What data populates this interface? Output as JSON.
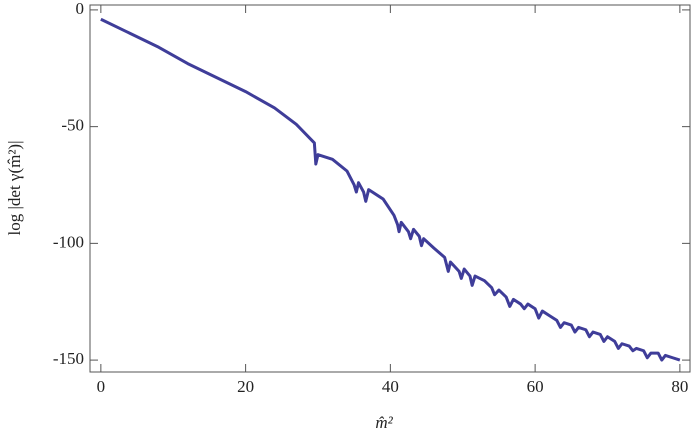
{
  "chart_data": {
    "type": "line",
    "xlabel": "m̂²",
    "ylabel": "log |det γ(m̂²)|",
    "x": [
      0,
      4,
      8,
      12,
      16,
      20,
      24,
      27,
      29.5,
      29.7,
      30,
      32,
      34,
      35,
      35.3,
      35.6,
      36.3,
      36.6,
      37,
      39,
      40.5,
      41,
      41.2,
      41.5,
      42.5,
      42.8,
      43.2,
      44,
      44.3,
      44.6,
      46,
      47.5,
      48,
      48.3,
      49.5,
      49.8,
      50.2,
      51,
      51.3,
      51.7,
      53,
      54,
      54.4,
      55,
      56,
      56.5,
      57,
      58,
      58.5,
      59,
      60,
      60.5,
      61,
      62,
      63,
      63.5,
      64,
      65,
      65.5,
      66,
      67,
      67.5,
      68,
      69,
      69.5,
      70,
      71,
      71.5,
      72,
      73,
      73.5,
      74,
      75,
      75.5,
      76,
      77,
      77.5,
      78,
      79,
      80
    ],
    "series": [
      {
        "color": "#3f3d99",
        "values": [
          -4,
          -10,
          -16,
          -23,
          -29,
          -35,
          -42,
          -49,
          -57,
          -66,
          -62,
          -64,
          -69,
          -75,
          -78,
          -74,
          -78,
          -82,
          -77,
          -81,
          -88,
          -92,
          -95,
          -91,
          -95,
          -98,
          -94,
          -97,
          -101,
          -98,
          -102,
          -106,
          -112,
          -108,
          -112,
          -115,
          -111,
          -114,
          -118,
          -114,
          -116,
          -119,
          -122,
          -120,
          -123,
          -127,
          -124,
          -126,
          -128,
          -126,
          -128,
          -132,
          -129,
          -131,
          -133,
          -136,
          -134,
          -135,
          -138,
          -136,
          -137,
          -140,
          -138,
          -139,
          -142,
          -140,
          -142,
          -145,
          -143,
          -144,
          -146,
          -145,
          -146,
          -149,
          -147,
          -147,
          -150,
          -148,
          -149,
          -150
        ]
      }
    ],
    "xlim": [
      -1.5,
      81.4
    ],
    "ylim": [
      -155.1,
      2.1
    ],
    "xticks": [
      0,
      20,
      40,
      60,
      80
    ],
    "yticks": [
      0,
      -50,
      -100,
      -150
    ]
  }
}
